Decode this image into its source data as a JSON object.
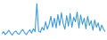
{
  "chart_data": {
    "type": "line",
    "color": "#3d9bd9",
    "tick_labels": false,
    "ylim": [
      0,
      100
    ],
    "categories": [
      null,
      null,
      null,
      null,
      null,
      null,
      null,
      null,
      null,
      null,
      null,
      null,
      null,
      null,
      null,
      null,
      null,
      null,
      null,
      null,
      null,
      null,
      null,
      null,
      null,
      null,
      null,
      null,
      null,
      null,
      null,
      null,
      null,
      null,
      null,
      null,
      null,
      null,
      null,
      null,
      null,
      null,
      null,
      null,
      null,
      null,
      null,
      null,
      null,
      null,
      null,
      null,
      null,
      null,
      null,
      null,
      null,
      null,
      null,
      null
    ],
    "values": [
      12,
      18,
      10,
      15,
      22,
      14,
      9,
      16,
      20,
      13,
      11,
      19,
      24,
      15,
      10,
      17,
      23,
      14,
      26,
      18,
      95,
      20,
      16,
      30,
      22,
      45,
      25,
      38,
      60,
      30,
      55,
      28,
      65,
      35,
      70,
      40,
      25,
      62,
      33,
      68,
      30,
      58,
      45,
      72,
      28,
      64,
      38,
      55,
      26,
      60,
      35,
      48,
      22,
      50,
      30,
      42,
      20,
      36,
      25,
      18
    ]
  }
}
